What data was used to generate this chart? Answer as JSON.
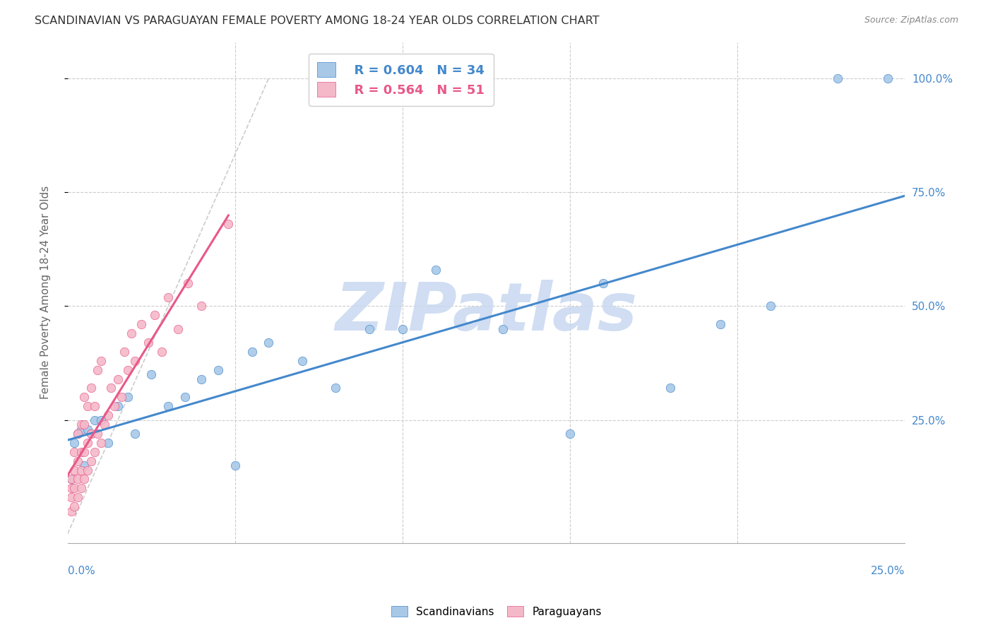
{
  "title": "SCANDINAVIAN VS PARAGUAYAN FEMALE POVERTY AMONG 18-24 YEAR OLDS CORRELATION CHART",
  "source": "Source: ZipAtlas.com",
  "ylabel": "Female Poverty Among 18-24 Year Olds",
  "xlim": [
    0.0,
    0.25
  ],
  "ylim": [
    -0.02,
    1.08
  ],
  "legend_blue_r": "R = 0.604",
  "legend_blue_n": "N = 34",
  "legend_pink_r": "R = 0.564",
  "legend_pink_n": "N = 51",
  "blue_scatter_color": "#a8c8e8",
  "pink_scatter_color": "#f4b8c8",
  "blue_line_color": "#4488cc",
  "pink_line_color": "#e85888",
  "watermark": "ZIPatlas",
  "watermark_color": "#c8d8f0",
  "background_color": "#ffffff",
  "grid_color": "#cccccc",
  "scatter_blue_x": [
    0.001,
    0.002,
    0.003,
    0.004,
    0.005,
    0.006,
    0.007,
    0.008,
    0.01,
    0.012,
    0.015,
    0.018,
    0.02,
    0.025,
    0.03,
    0.035,
    0.04,
    0.045,
    0.05,
    0.055,
    0.06,
    0.07,
    0.08,
    0.09,
    0.1,
    0.11,
    0.13,
    0.15,
    0.16,
    0.18,
    0.195,
    0.21,
    0.23,
    0.245
  ],
  "scatter_blue_y": [
    0.12,
    0.2,
    0.22,
    0.23,
    0.15,
    0.23,
    0.22,
    0.25,
    0.25,
    0.2,
    0.28,
    0.3,
    0.22,
    0.35,
    0.28,
    0.3,
    0.34,
    0.36,
    0.15,
    0.4,
    0.42,
    0.38,
    0.32,
    0.45,
    0.45,
    0.58,
    0.45,
    0.22,
    0.55,
    0.32,
    0.46,
    0.5,
    1.0,
    1.0
  ],
  "scatter_pink_x": [
    0.001,
    0.001,
    0.001,
    0.001,
    0.002,
    0.002,
    0.002,
    0.002,
    0.003,
    0.003,
    0.003,
    0.003,
    0.004,
    0.004,
    0.004,
    0.004,
    0.005,
    0.005,
    0.005,
    0.005,
    0.006,
    0.006,
    0.006,
    0.007,
    0.007,
    0.007,
    0.008,
    0.008,
    0.009,
    0.009,
    0.01,
    0.01,
    0.011,
    0.012,
    0.013,
    0.014,
    0.015,
    0.016,
    0.017,
    0.018,
    0.019,
    0.02,
    0.022,
    0.024,
    0.026,
    0.028,
    0.03,
    0.033,
    0.036,
    0.04,
    0.048
  ],
  "scatter_pink_y": [
    0.05,
    0.08,
    0.1,
    0.12,
    0.06,
    0.1,
    0.14,
    0.18,
    0.08,
    0.12,
    0.16,
    0.22,
    0.1,
    0.14,
    0.18,
    0.24,
    0.12,
    0.18,
    0.24,
    0.3,
    0.14,
    0.2,
    0.28,
    0.16,
    0.22,
    0.32,
    0.18,
    0.28,
    0.22,
    0.36,
    0.2,
    0.38,
    0.24,
    0.26,
    0.32,
    0.28,
    0.34,
    0.3,
    0.4,
    0.36,
    0.44,
    0.38,
    0.46,
    0.42,
    0.48,
    0.4,
    0.52,
    0.45,
    0.55,
    0.5,
    0.68
  ],
  "ytick_values": [
    0.25,
    0.5,
    0.75,
    1.0
  ],
  "ytick_labels": [
    "25.0%",
    "50.0%",
    "75.0%",
    "100.0%"
  ]
}
